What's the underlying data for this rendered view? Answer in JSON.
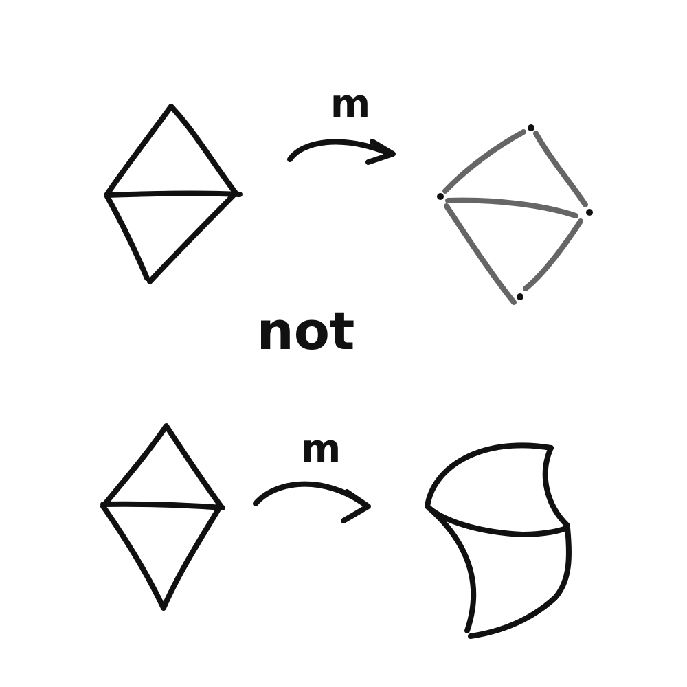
{
  "colors": {
    "ink": "#111111",
    "gray_ink": "#666666",
    "background": "#ffffff"
  },
  "labels": {
    "map_top": "m",
    "not": "not",
    "map_bottom": "m"
  }
}
